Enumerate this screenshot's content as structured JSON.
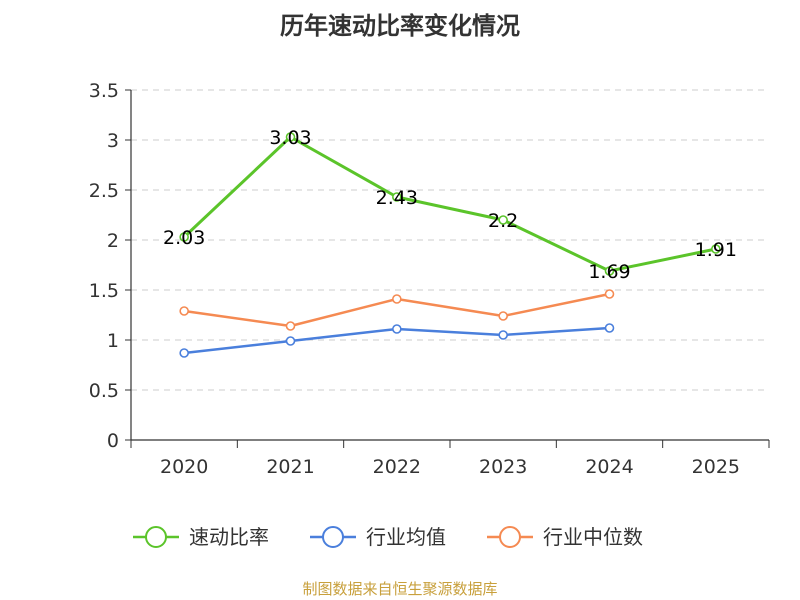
{
  "chart_data": {
    "type": "line",
    "title": "历年速动比率变化情况",
    "categories": [
      "2020",
      "2021",
      "2022",
      "2023",
      "2024",
      "2025"
    ],
    "ylim": [
      0,
      3.5
    ],
    "yticks": [
      "0",
      "0.5",
      "1",
      "1.5",
      "2",
      "2.5",
      "3",
      "3.5"
    ],
    "series": [
      {
        "name": "速动比率",
        "color": "#5bc42a",
        "values": [
          2.03,
          3.03,
          2.43,
          2.2,
          1.69,
          1.91
        ],
        "labels": [
          "2.03",
          "3.03",
          "2.43",
          "2.2",
          "1.69",
          "1.91"
        ]
      },
      {
        "name": "行业均值",
        "color": "#4a7fdc",
        "values": [
          0.87,
          0.99,
          1.11,
          1.05,
          1.12,
          null
        ]
      },
      {
        "name": "行业中位数",
        "color": "#f58a52",
        "values": [
          1.29,
          1.14,
          1.41,
          1.24,
          1.46,
          null
        ]
      }
    ],
    "grid": true,
    "legend_position": "bottom"
  },
  "source": "制图数据来自恒生聚源数据库"
}
